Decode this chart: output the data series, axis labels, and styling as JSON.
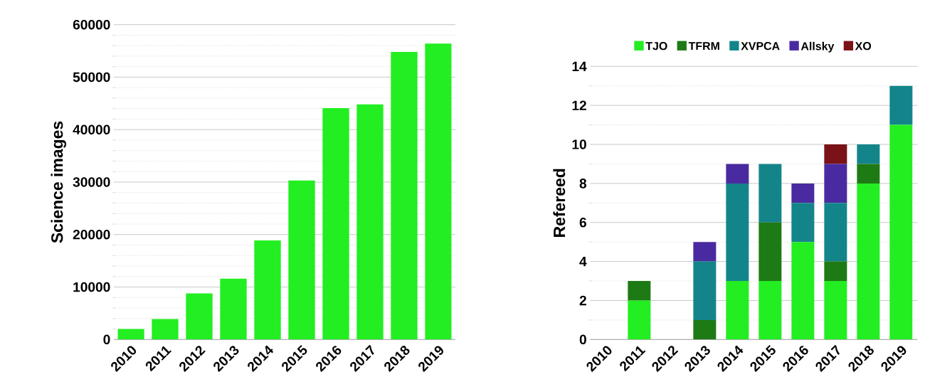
{
  "chart_data": [
    {
      "type": "bar",
      "ylabel": "Science images",
      "categories": [
        "2010",
        "2011",
        "2012",
        "2013",
        "2014",
        "2015",
        "2016",
        "2017",
        "2018",
        "2019"
      ],
      "values": [
        2000,
        3900,
        8800,
        11600,
        18900,
        30300,
        44100,
        44800,
        54800,
        56400
      ],
      "color": "#22ee22",
      "ylim": [
        0,
        60000
      ],
      "yticks": [
        0,
        {
          "value": 2000,
          "label": null
        },
        {
          "value": 4000,
          "label": null
        },
        {
          "value": 6000,
          "label": null
        },
        {
          "value": 8000,
          "label": null
        },
        10000,
        {
          "value": 12000,
          "label": null
        },
        {
          "value": 14000,
          "label": null
        },
        {
          "value": 16000,
          "label": null
        },
        {
          "value": 18000,
          "label": null
        },
        20000,
        {
          "value": 22000,
          "label": null
        },
        {
          "value": 24000,
          "label": null
        },
        {
          "value": 26000,
          "label": null
        },
        {
          "value": 28000,
          "label": null
        },
        30000,
        {
          "value": 32000,
          "label": null
        },
        {
          "value": 34000,
          "label": null
        },
        {
          "value": 36000,
          "label": null
        },
        {
          "value": 38000,
          "label": null
        },
        40000,
        {
          "value": 42000,
          "label": null
        },
        {
          "value": 44000,
          "label": null
        },
        {
          "value": 46000,
          "label": null
        },
        {
          "value": 48000,
          "label": null
        },
        50000,
        {
          "value": 52000,
          "label": null
        },
        {
          "value": 54000,
          "label": null
        },
        {
          "value": 56000,
          "label": null
        },
        {
          "value": 58000,
          "label": null
        },
        60000
      ],
      "grid": "y"
    },
    {
      "type": "bar",
      "ylabel": "Refereed",
      "stacked": true,
      "legend": "top",
      "categories": [
        "2010",
        "2011",
        "2012",
        "2013",
        "2014",
        "2015",
        "2016",
        "2017",
        "2018",
        "2019"
      ],
      "series": [
        {
          "name": "TJO",
          "color": "#22ee22",
          "values": [
            0,
            2,
            0,
            0,
            3,
            3,
            5,
            3,
            8,
            11
          ]
        },
        {
          "name": "TFRM",
          "color": "#1e7a14",
          "values": [
            0,
            1,
            0,
            1,
            0,
            3,
            0,
            1,
            1,
            0
          ]
        },
        {
          "name": "XVPCA",
          "color": "#13858a",
          "values": [
            0,
            0,
            0,
            3,
            5,
            3,
            2,
            3,
            1,
            2
          ]
        },
        {
          "name": "Allsky",
          "color": "#4a2aa0",
          "values": [
            0,
            0,
            0,
            1,
            1,
            0,
            1,
            2,
            0,
            0
          ]
        },
        {
          "name": "XO",
          "color": "#7a1218",
          "values": [
            0,
            0,
            0,
            0,
            0,
            0,
            0,
            1,
            0,
            0
          ]
        }
      ],
      "ylim": [
        0,
        14
      ],
      "yticks": [
        0,
        {
          "value": 1,
          "label": null
        },
        2,
        {
          "value": 3,
          "label": null
        },
        4,
        {
          "value": 5,
          "label": null
        },
        6,
        {
          "value": 7,
          "label": null
        },
        8,
        {
          "value": 9,
          "label": null
        },
        10,
        {
          "value": 11,
          "label": null
        },
        12,
        {
          "value": 13,
          "label": null
        },
        14
      ],
      "grid": "y"
    }
  ]
}
